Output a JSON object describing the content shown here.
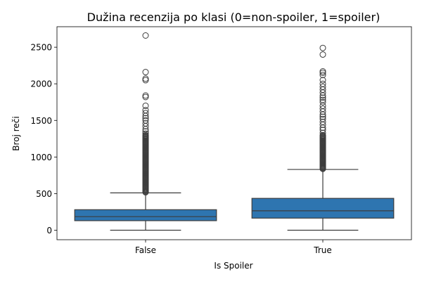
{
  "chart_data": {
    "type": "box",
    "title": "Dužina recenzija po klasi (0=non-spoiler, 1=spoiler)",
    "xlabel": "Is Spoiler",
    "ylabel": "Broj reči",
    "categories": [
      "False",
      "True"
    ],
    "ylim": [
      -130,
      2780
    ],
    "yticks": [
      0,
      500,
      1000,
      1500,
      2000,
      2500
    ],
    "grid": false,
    "box_color": "#2e75b0",
    "boxes": [
      {
        "category": "False",
        "whisker_low": 0,
        "q1": 130,
        "median": 185,
        "q3": 280,
        "whisker_high": 510,
        "outliers_dense_range": [
          510,
          1300
        ],
        "outliers": [
          1320,
          1350,
          1380,
          1420,
          1460,
          1500,
          1530,
          1560,
          1600,
          1640,
          1700,
          1820,
          1840,
          2050,
          2070,
          2160,
          2660
        ]
      },
      {
        "category": "True",
        "whisker_low": 0,
        "q1": 165,
        "median": 265,
        "q3": 435,
        "whisker_high": 830,
        "outliers_dense_range": [
          830,
          1300
        ],
        "outliers": [
          1330,
          1370,
          1400,
          1440,
          1480,
          1520,
          1550,
          1580,
          1620,
          1660,
          1700,
          1750,
          1780,
          1810,
          1840,
          1880,
          1920,
          1960,
          2000,
          2050,
          2120,
          2150,
          2170,
          2400,
          2490
        ]
      }
    ]
  }
}
